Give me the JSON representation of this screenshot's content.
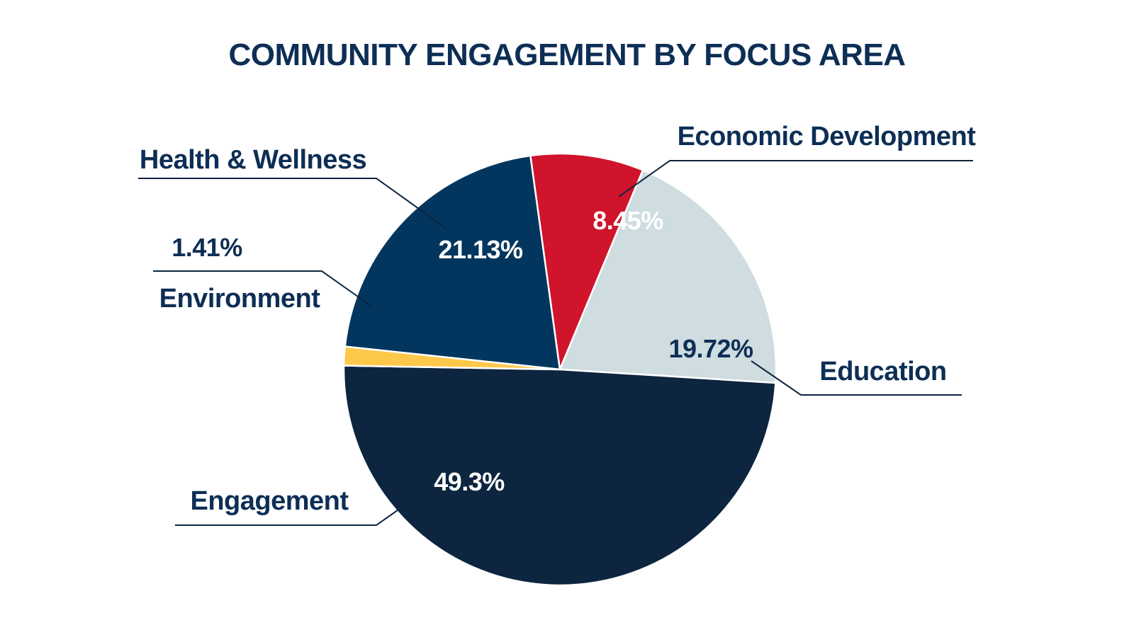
{
  "chart_data": {
    "type": "pie",
    "title": "COMMUNITY ENGAGEMENT BY FOCUS AREA",
    "categories": [
      "Health & Wellness",
      "Economic Development",
      "Education",
      "Engagement",
      "Environment"
    ],
    "values": [
      21.13,
      8.45,
      19.72,
      49.3,
      1.41
    ],
    "value_labels": [
      "21.13%",
      "8.45%",
      "19.72%",
      "49.3%",
      "1.41%"
    ],
    "colors": [
      "#03365e",
      "#cf142b",
      "#cfdce0",
      "#0d253f",
      "#fec84a"
    ],
    "grid": false,
    "legend": "none"
  },
  "colors": {
    "text_dark": "#0d2e55",
    "text_on_dark": "#ffffff",
    "leader_line": "#0d253f",
    "background": "#ffffff"
  }
}
